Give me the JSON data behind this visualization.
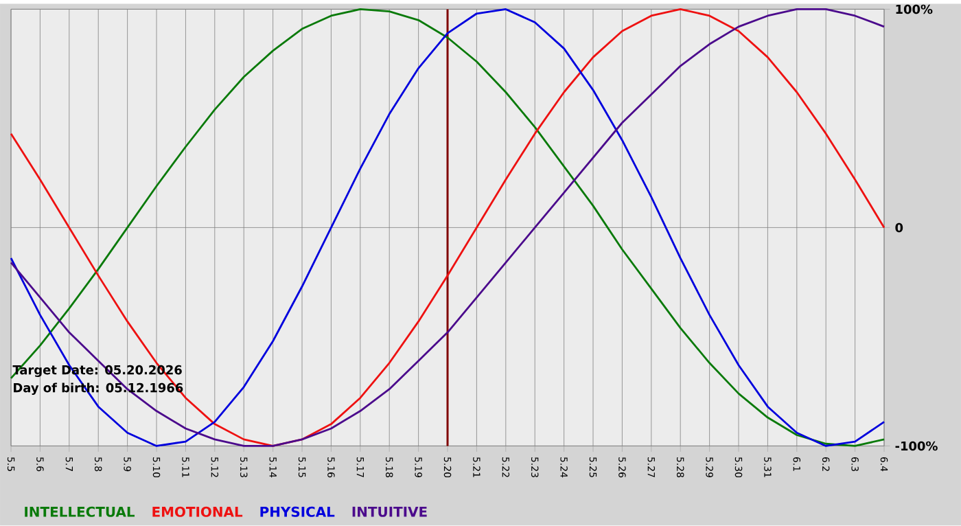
{
  "chart_data": {
    "type": "line",
    "categories": [
      "5.5",
      "5.6",
      "5.7",
      "5.8",
      "5.9",
      "5.10",
      "5.11",
      "5.12",
      "5.13",
      "5.14",
      "5.15",
      "5.16",
      "5.17",
      "5.18",
      "5.19",
      "5.20",
      "5.21",
      "5.22",
      "5.23",
      "5.24",
      "5.25",
      "5.26",
      "5.27",
      "5.28",
      "5.29",
      "5.30",
      "5.31",
      "6.1",
      "6.2",
      "6.3",
      "6.4"
    ],
    "series": [
      {
        "name": "INTELLECTUAL",
        "color": "#0a7a0a",
        "values": [
          -69,
          -54,
          -37,
          -19,
          0,
          19,
          37,
          54,
          69,
          81,
          91,
          97,
          100,
          99,
          95,
          87,
          76,
          62,
          46,
          28,
          10,
          -10,
          -28,
          -46,
          -62,
          -76,
          -87,
          -95,
          -99,
          -100,
          -97
        ]
      },
      {
        "name": "EMOTIONAL",
        "color": "#ee1111",
        "values": [
          43,
          22,
          0,
          -22,
          -43,
          -62,
          -78,
          -90,
          -97,
          -100,
          -97,
          -90,
          -78,
          -62,
          -43,
          -22,
          0,
          22,
          43,
          62,
          78,
          90,
          97,
          100,
          97,
          90,
          78,
          62,
          43,
          22,
          0
        ]
      },
      {
        "name": "PHYSICAL",
        "color": "#0000dd",
        "values": [
          -14,
          -40,
          -63,
          -82,
          -94,
          -100,
          -98,
          -89,
          -73,
          -52,
          -27,
          0,
          27,
          52,
          73,
          89,
          98,
          100,
          94,
          82,
          63,
          40,
          14,
          -14,
          -40,
          -63,
          -82,
          -94,
          -100,
          -98,
          -89
        ]
      },
      {
        "name": "INTUITIVE",
        "color": "#4b0a8c",
        "values": [
          -16,
          -32,
          -48,
          -61,
          -74,
          -84,
          -92,
          -97,
          -100,
          -100,
          -97,
          -92,
          -84,
          -74,
          -61,
          -48,
          -32,
          -16,
          0,
          16,
          32,
          48,
          61,
          74,
          84,
          92,
          97,
          100,
          100,
          97,
          92
        ]
      }
    ],
    "ylim": [
      -100,
      100
    ],
    "yticks": [
      {
        "value": -100,
        "label": "-100%"
      },
      0,
      {
        "value": 100,
        "label": "100%"
      }
    ],
    "grid": true,
    "legend": "bottom",
    "marker": "none",
    "line_style": "solid",
    "ref_lines": [
      {
        "axis": "x",
        "value": "5.20",
        "color": "#800000"
      }
    ],
    "annotations": [
      "Target Date: 05.20.2026",
      "Day of birth: 05.12.1966"
    ]
  }
}
